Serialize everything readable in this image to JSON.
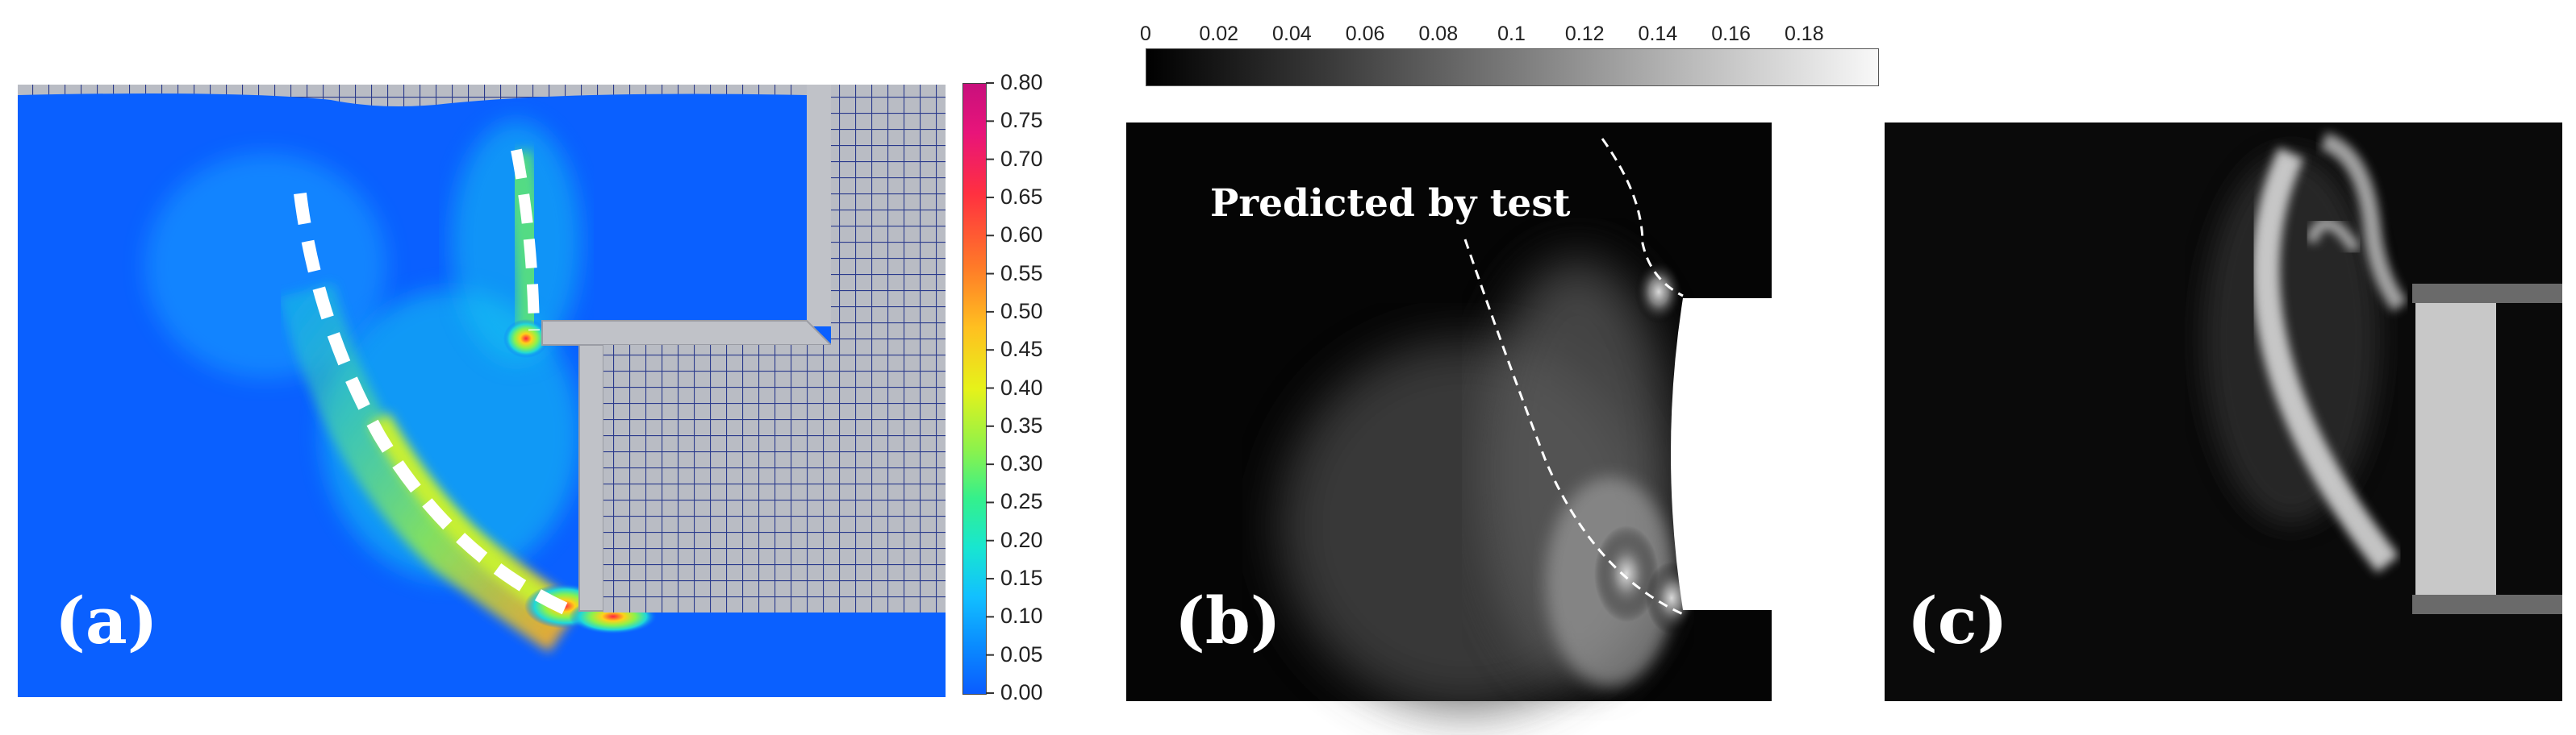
{
  "panels": [
    {
      "label": "(a)"
    },
    {
      "label": "(b)",
      "annotation": "Predicted by test"
    },
    {
      "label": "(c)"
    }
  ],
  "colorbar_a": {
    "ticks": [
      "0.00",
      "0.05",
      "0.10",
      "0.15",
      "0.20",
      "0.25",
      "0.30",
      "0.35",
      "0.40",
      "0.45",
      "0.50",
      "0.55",
      "0.60",
      "0.65",
      "0.70",
      "0.75",
      "0.80"
    ],
    "colors": [
      "#0a5cff",
      "#0a8cff",
      "#12c0ff",
      "#18e6d0",
      "#34f08c",
      "#8cf24c",
      "#e6f21a",
      "#ffc020",
      "#ff7a28",
      "#ff3040",
      "#e8147a",
      "#c8107c"
    ]
  },
  "colorbar_b": {
    "ticks": [
      "0",
      "0.02",
      "0.04",
      "0.06",
      "0.08",
      "0.1",
      "0.12",
      "0.14",
      "0.16",
      "0.18"
    ]
  },
  "colors": {
    "field_blue": "#0a60ff",
    "mesh_gray": "#b9bcc4",
    "mesh_line": "#2a3a8c",
    "dashed_marker": "#ffffff"
  }
}
